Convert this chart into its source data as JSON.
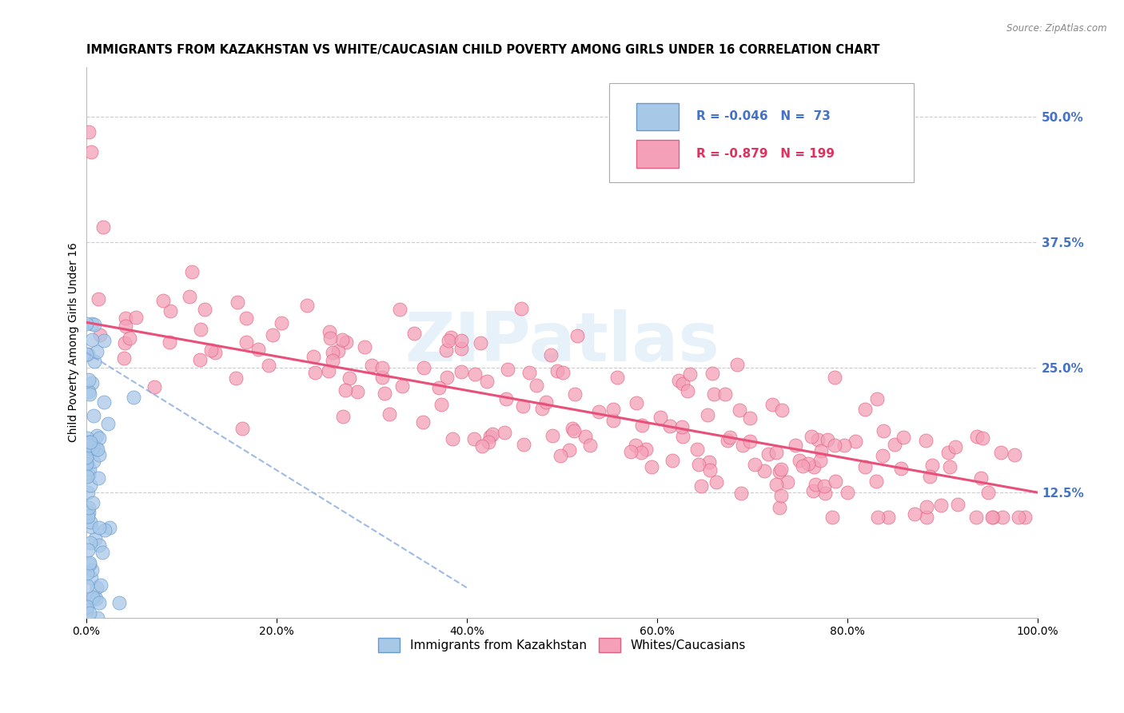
{
  "title": "IMMIGRANTS FROM KAZAKHSTAN VS WHITE/CAUCASIAN CHILD POVERTY AMONG GIRLS UNDER 16 CORRELATION CHART",
  "source": "Source: ZipAtlas.com",
  "ylabel": "Child Poverty Among Girls Under 16",
  "R_blue": -0.046,
  "N_blue": 73,
  "R_pink": -0.879,
  "N_pink": 199,
  "blue_scatter_color": "#a8c8e8",
  "blue_edge_color": "#6699cc",
  "pink_scatter_color": "#f4a0b8",
  "pink_edge_color": "#e06080",
  "blue_line_color": "#88aadd",
  "pink_line_color": "#e8507a",
  "legend_blue_label": "Immigrants from Kazakhstan",
  "legend_pink_label": "Whites/Caucasians",
  "xlim": [
    0.0,
    1.0
  ],
  "ylim": [
    0.0,
    0.55
  ],
  "yticks_right": [
    0.125,
    0.25,
    0.375,
    0.5
  ],
  "ytick_labels_right": [
    "12.5%",
    "25.0%",
    "37.5%",
    "50.0%"
  ],
  "xticks": [
    0.0,
    0.2,
    0.4,
    0.6,
    0.8,
    1.0
  ],
  "xtick_labels": [
    "0.0%",
    "20.0%",
    "40.0%",
    "60.0%",
    "80.0%",
    "100.0%"
  ],
  "watermark": "ZIPatlas",
  "grid_color": "#cccccc",
  "title_fontsize": 10.5,
  "axis_label_fontsize": 10,
  "tick_fontsize": 10,
  "legend_fontsize": 11,
  "blue_text_color": "#4472c4",
  "pink_text_color": "#e03060",
  "right_tick_color": "#4472c4"
}
